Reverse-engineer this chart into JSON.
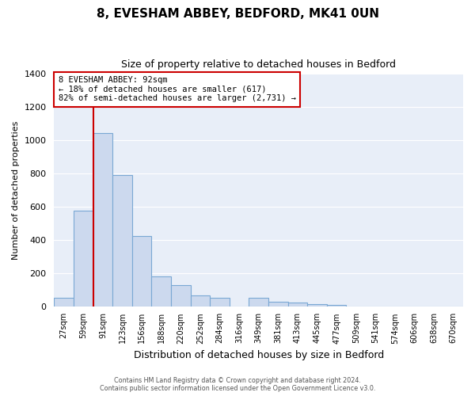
{
  "title": "8, EVESHAM ABBEY, BEDFORD, MK41 0UN",
  "subtitle": "Size of property relative to detached houses in Bedford",
  "xlabel": "Distribution of detached houses by size in Bedford",
  "ylabel": "Number of detached properties",
  "bar_labels": [
    "27sqm",
    "59sqm",
    "91sqm",
    "123sqm",
    "156sqm",
    "188sqm",
    "220sqm",
    "252sqm",
    "284sqm",
    "316sqm",
    "349sqm",
    "381sqm",
    "413sqm",
    "445sqm",
    "477sqm",
    "509sqm",
    "541sqm",
    "574sqm",
    "606sqm",
    "638sqm",
    "670sqm"
  ],
  "bar_values": [
    50,
    575,
    1045,
    790,
    425,
    180,
    125,
    65,
    50,
    0,
    50,
    28,
    20,
    10,
    5,
    0,
    0,
    0,
    0,
    0,
    0
  ],
  "bar_fill_color": "#ccd9ee",
  "bar_edge_color": "#7aa8d4",
  "highlight_color": "#cc0000",
  "highlight_bar_index": 2,
  "annotation_text": "8 EVESHAM ABBEY: 92sqm\n← 18% of detached houses are smaller (617)\n82% of semi-detached houses are larger (2,731) →",
  "annotation_box_facecolor": "#ffffff",
  "annotation_box_edgecolor": "#cc0000",
  "ylim": [
    0,
    1400
  ],
  "yticks": [
    0,
    200,
    400,
    600,
    800,
    1000,
    1200,
    1400
  ],
  "footer_line1": "Contains HM Land Registry data © Crown copyright and database right 2024.",
  "footer_line2": "Contains public sector information licensed under the Open Government Licence v3.0.",
  "bg_color": "#ffffff",
  "plot_bg_color": "#e8eef8",
  "grid_color": "#ffffff",
  "title_fontsize": 11,
  "subtitle_fontsize": 9,
  "axis_label_fontsize": 8,
  "tick_fontsize": 7
}
